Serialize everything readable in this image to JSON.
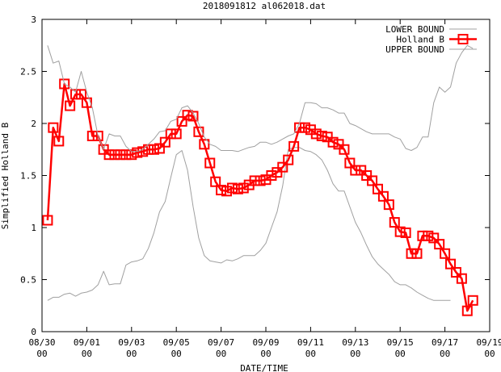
{
  "chart_data": {
    "type": "line",
    "title": "2018091812 al062018.dat",
    "xlabel": "DATE/TIME",
    "ylabel": "Simplified Holland B",
    "xlim": [
      0,
      20
    ],
    "ylim": [
      0,
      3
    ],
    "x_ticks": [
      {
        "x": 0,
        "line1": "08/30",
        "line2": "00"
      },
      {
        "x": 2,
        "line1": "09/01",
        "line2": "00"
      },
      {
        "x": 4,
        "line1": "09/03",
        "line2": "00"
      },
      {
        "x": 6,
        "line1": "09/05",
        "line2": "00"
      },
      {
        "x": 8,
        "line1": "09/07",
        "line2": "00"
      },
      {
        "x": 10,
        "line1": "09/09",
        "line2": "00"
      },
      {
        "x": 12,
        "line1": "09/11",
        "line2": "00"
      },
      {
        "x": 14,
        "line1": "09/13",
        "line2": "00"
      },
      {
        "x": 16,
        "line1": "09/15",
        "line2": "00"
      },
      {
        "x": 18,
        "line1": "09/17",
        "line2": "00"
      },
      {
        "x": 20,
        "line1": "09/19",
        "line2": "00"
      }
    ],
    "y_ticks": [
      {
        "v": 0,
        "label": "0"
      },
      {
        "v": 0.5,
        "label": "0.5"
      },
      {
        "v": 1,
        "label": "1"
      },
      {
        "v": 1.5,
        "label": "1.5"
      },
      {
        "v": 2,
        "label": "2"
      },
      {
        "v": 2.5,
        "label": "2.5"
      },
      {
        "v": 3,
        "label": "3"
      }
    ],
    "legend": {
      "placement": "top-right"
    },
    "series": [
      {
        "name": "LOWER BOUND",
        "color": "#a0a0a0",
        "marker": "none",
        "points": [
          [
            0.25,
            0.3
          ],
          [
            0.5,
            0.33
          ],
          [
            0.75,
            0.33
          ],
          [
            1,
            0.36
          ],
          [
            1.25,
            0.37
          ],
          [
            1.5,
            0.34
          ],
          [
            1.75,
            0.37
          ],
          [
            2,
            0.38
          ],
          [
            2.25,
            0.4
          ],
          [
            2.5,
            0.45
          ],
          [
            2.75,
            0.58
          ],
          [
            3,
            0.45
          ],
          [
            3.25,
            0.46
          ],
          [
            3.5,
            0.46
          ],
          [
            3.75,
            0.64
          ],
          [
            4,
            0.67
          ],
          [
            4.25,
            0.68
          ],
          [
            4.5,
            0.7
          ],
          [
            4.75,
            0.8
          ],
          [
            5,
            0.95
          ],
          [
            5.25,
            1.15
          ],
          [
            5.5,
            1.25
          ],
          [
            5.75,
            1.48
          ],
          [
            6,
            1.7
          ],
          [
            6.25,
            1.74
          ],
          [
            6.5,
            1.55
          ],
          [
            6.75,
            1.2
          ],
          [
            7,
            0.9
          ],
          [
            7.25,
            0.73
          ],
          [
            7.5,
            0.68
          ],
          [
            7.75,
            0.67
          ],
          [
            8,
            0.66
          ],
          [
            8.25,
            0.69
          ],
          [
            8.5,
            0.68
          ],
          [
            8.75,
            0.7
          ],
          [
            9,
            0.73
          ],
          [
            9.25,
            0.73
          ],
          [
            9.5,
            0.73
          ],
          [
            9.75,
            0.78
          ],
          [
            10,
            0.85
          ],
          [
            10.25,
            1.0
          ],
          [
            10.5,
            1.15
          ],
          [
            10.75,
            1.4
          ],
          [
            11,
            1.75
          ],
          [
            11.25,
            1.77
          ],
          [
            11.5,
            1.77
          ],
          [
            11.75,
            1.74
          ],
          [
            12,
            1.73
          ],
          [
            12.25,
            1.7
          ],
          [
            12.5,
            1.65
          ],
          [
            12.75,
            1.55
          ],
          [
            13,
            1.42
          ],
          [
            13.25,
            1.35
          ],
          [
            13.5,
            1.35
          ],
          [
            13.75,
            1.2
          ],
          [
            14,
            1.05
          ],
          [
            14.25,
            0.95
          ],
          [
            14.5,
            0.83
          ],
          [
            14.75,
            0.72
          ],
          [
            15,
            0.65
          ],
          [
            15.25,
            0.6
          ],
          [
            15.5,
            0.55
          ],
          [
            15.75,
            0.48
          ],
          [
            16,
            0.45
          ],
          [
            16.25,
            0.45
          ],
          [
            16.5,
            0.42
          ],
          [
            16.75,
            0.38
          ],
          [
            17,
            0.35
          ],
          [
            17.25,
            0.32
          ],
          [
            17.5,
            0.3
          ],
          [
            17.75,
            0.3
          ],
          [
            18,
            0.3
          ],
          [
            18.25,
            0.3
          ]
        ]
      },
      {
        "name": "Holland B",
        "color": "#ff0000",
        "marker": "square",
        "points": [
          [
            0.25,
            1.07
          ],
          [
            0.5,
            1.96
          ],
          [
            0.75,
            1.83
          ],
          [
            1,
            2.38
          ],
          [
            1.25,
            2.17
          ],
          [
            1.5,
            2.28
          ],
          [
            1.75,
            2.28
          ],
          [
            2,
            2.2
          ],
          [
            2.25,
            1.88
          ],
          [
            2.5,
            1.88
          ],
          [
            2.75,
            1.75
          ],
          [
            3,
            1.7
          ],
          [
            3.25,
            1.7
          ],
          [
            3.5,
            1.7
          ],
          [
            3.75,
            1.7
          ],
          [
            4,
            1.7
          ],
          [
            4.25,
            1.72
          ],
          [
            4.5,
            1.73
          ],
          [
            4.75,
            1.75
          ],
          [
            5,
            1.75
          ],
          [
            5.25,
            1.76
          ],
          [
            5.5,
            1.82
          ],
          [
            5.75,
            1.9
          ],
          [
            6,
            1.9
          ],
          [
            6.25,
            2.02
          ],
          [
            6.5,
            2.08
          ],
          [
            6.75,
            2.07
          ],
          [
            7,
            1.92
          ],
          [
            7.25,
            1.8
          ],
          [
            7.5,
            1.62
          ],
          [
            7.75,
            1.44
          ],
          [
            8,
            1.36
          ],
          [
            8.25,
            1.35
          ],
          [
            8.5,
            1.38
          ],
          [
            8.75,
            1.37
          ],
          [
            9,
            1.38
          ],
          [
            9.25,
            1.41
          ],
          [
            9.5,
            1.45
          ],
          [
            9.75,
            1.45
          ],
          [
            10,
            1.46
          ],
          [
            10.25,
            1.5
          ],
          [
            10.5,
            1.53
          ],
          [
            10.75,
            1.58
          ],
          [
            11,
            1.65
          ],
          [
            11.25,
            1.78
          ],
          [
            11.5,
            1.96
          ],
          [
            11.75,
            1.96
          ],
          [
            12,
            1.94
          ],
          [
            12.25,
            1.9
          ],
          [
            12.5,
            1.88
          ],
          [
            12.75,
            1.87
          ],
          [
            13,
            1.82
          ],
          [
            13.25,
            1.8
          ],
          [
            13.5,
            1.75
          ],
          [
            13.75,
            1.62
          ],
          [
            14,
            1.55
          ],
          [
            14.25,
            1.55
          ],
          [
            14.5,
            1.5
          ],
          [
            14.75,
            1.45
          ],
          [
            15,
            1.37
          ],
          [
            15.25,
            1.3
          ],
          [
            15.5,
            1.22
          ],
          [
            15.75,
            1.05
          ],
          [
            16,
            0.96
          ],
          [
            16.25,
            0.95
          ],
          [
            16.5,
            0.75
          ],
          [
            16.75,
            0.75
          ],
          [
            17,
            0.92
          ],
          [
            17.25,
            0.92
          ],
          [
            17.5,
            0.9
          ],
          [
            17.75,
            0.84
          ],
          [
            18,
            0.75
          ],
          [
            18.25,
            0.65
          ],
          [
            18.5,
            0.57
          ],
          [
            18.75,
            0.51
          ],
          [
            19,
            0.2
          ],
          [
            19.25,
            0.3
          ]
        ]
      },
      {
        "name": "UPPER BOUND",
        "color": "#a0a0a0",
        "marker": "none",
        "points": [
          [
            0.25,
            2.75
          ],
          [
            0.5,
            2.58
          ],
          [
            0.75,
            2.6
          ],
          [
            1,
            2.38
          ],
          [
            1.25,
            2.35
          ],
          [
            1.5,
            2.3
          ],
          [
            1.75,
            2.5
          ],
          [
            2,
            2.3
          ],
          [
            2.25,
            2.15
          ],
          [
            2.5,
            1.88
          ],
          [
            2.75,
            1.75
          ],
          [
            3,
            1.9
          ],
          [
            3.25,
            1.88
          ],
          [
            3.5,
            1.88
          ],
          [
            3.75,
            1.78
          ],
          [
            4,
            1.73
          ],
          [
            4.25,
            1.73
          ],
          [
            4.5,
            1.75
          ],
          [
            4.75,
            1.8
          ],
          [
            5,
            1.85
          ],
          [
            5.25,
            1.92
          ],
          [
            5.5,
            1.93
          ],
          [
            5.75,
            2.02
          ],
          [
            6,
            2.04
          ],
          [
            6.25,
            2.15
          ],
          [
            6.5,
            2.17
          ],
          [
            6.75,
            2.1
          ],
          [
            7,
            2.0
          ],
          [
            7.25,
            1.87
          ],
          [
            7.5,
            1.8
          ],
          [
            7.75,
            1.78
          ],
          [
            8,
            1.74
          ],
          [
            8.25,
            1.74
          ],
          [
            8.5,
            1.74
          ],
          [
            8.75,
            1.73
          ],
          [
            9,
            1.75
          ],
          [
            9.25,
            1.77
          ],
          [
            9.5,
            1.78
          ],
          [
            9.75,
            1.82
          ],
          [
            10,
            1.82
          ],
          [
            10.25,
            1.8
          ],
          [
            10.5,
            1.82
          ],
          [
            10.75,
            1.85
          ],
          [
            11,
            1.88
          ],
          [
            11.25,
            1.9
          ],
          [
            11.5,
            2.0
          ],
          [
            11.75,
            2.2
          ],
          [
            12,
            2.2
          ],
          [
            12.25,
            2.19
          ],
          [
            12.5,
            2.15
          ],
          [
            12.75,
            2.15
          ],
          [
            13,
            2.13
          ],
          [
            13.25,
            2.1
          ],
          [
            13.5,
            2.1
          ],
          [
            13.75,
            2.0
          ],
          [
            14,
            1.98
          ],
          [
            14.25,
            1.95
          ],
          [
            14.5,
            1.92
          ],
          [
            14.75,
            1.9
          ],
          [
            15,
            1.9
          ],
          [
            15.25,
            1.9
          ],
          [
            15.5,
            1.9
          ],
          [
            15.75,
            1.87
          ],
          [
            16,
            1.85
          ],
          [
            16.25,
            1.76
          ],
          [
            16.5,
            1.74
          ],
          [
            16.75,
            1.77
          ],
          [
            17,
            1.87
          ],
          [
            17.25,
            1.87
          ],
          [
            17.5,
            2.2
          ],
          [
            17.75,
            2.35
          ],
          [
            18,
            2.3
          ],
          [
            18.25,
            2.35
          ],
          [
            18.5,
            2.58
          ],
          [
            18.75,
            2.68
          ],
          [
            19,
            2.75
          ],
          [
            19.25,
            2.72
          ]
        ]
      }
    ]
  }
}
